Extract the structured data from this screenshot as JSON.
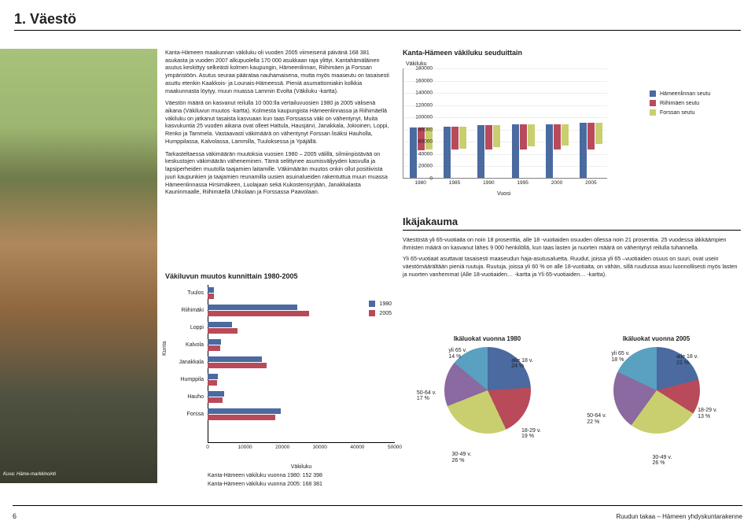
{
  "page": {
    "section_title": "1. Väestö",
    "page_number": "6",
    "footer_text": "Ruudun takaa – Hämeen yhdyskuntarakenne",
    "photo_credit": "Kuva: Häme-markkinointi"
  },
  "main_text": {
    "p1": "Kanta-Hämeen maakunnan väkiluku oli vuoden 2005 viimeisenä päivänä 168 381 asukasta ja vuoden 2007 alkupuolella 170 000 asukkaan raja ylittyi. Kantahämäläinen asutus keskittyy selkeästi kolmen kaupungin, Hämeenlinnan, Riihimäen ja Forssan ympäristöön. Asutus seuraa pääratаa nauhamaisena, mutta myös maaseutu on tasaisesti asuttu etenkin Kaakkois- ja Lounais-Hämeessä. Pieniä asumattomiakin kolkkia maakunnasta löytyy, muun muassa Lammin Evolta (Väkiluku -kartta).",
    "p2": "Väestön määrä on kasvanut reilulla 10 000:lla vertailuvuosien 1980 ja 2005 välisenä aikana (Väkiluvun muutos -kartta). Kolmesta kaupungista Hämeenlinnassa ja Riihimäellä väkiluku on jatkanut tasaista kasvuaan kun taas Forssassa väki on vähentynyt. Muita kasvukuntia 25 vuoden aikana ovat olleet Hattula, Hausjärvi, Janakkala, Jokioinen, Loppi, Renko ja Tammela. Vastaavasti väkimäärä on vähentynyt Forssan lisäksi Hauholla, Humppilassa, Kalvolassa, Lammilla, Tuuloksessa ja Ypäjällä.",
    "p3": "Tarkasteltaessa väkimäärän muutoksia vuosien 1980 – 2005 välillä, silmiinpistävää on keskustojen väkimäärän väheneminen. Tämä selittynee asumisväljyyden kasvulla ja lapsiperheiden muutolla taajamien laitamille. Väkimäärän muutos onkin ollut positiivista juuri kaupunkien ja taajamien reunamilla uusien asuinalueiden rakentuttua muun muassa Hämeenlinnassa Hirsimäkeen, Luolajaan sekä Kukostensyrjään, Janakkalasta Kauriinmaalle, Riihimäellä Uhkolaan ja Forssassa Paavolaan."
  },
  "chart1": {
    "title": "Kanta-Hämeen väkiluku seuduittain",
    "ylabel": "Väkiluku",
    "xlabel": "Vuosi",
    "ylim": [
      0,
      180000
    ],
    "ytick_step": 20000,
    "yticks": [
      "0",
      "20000",
      "40000",
      "60000",
      "80000",
      "100000",
      "120000",
      "140000",
      "160000",
      "180000"
    ],
    "xticks": [
      "1980",
      "1985",
      "1990",
      "1995",
      "2000",
      "2005"
    ],
    "series": [
      {
        "name": "Hämeenlinnan seutu",
        "color": "#4a6aa0",
        "values": [
          82000,
          84000,
          86000,
          87000,
          88000,
          90000
        ]
      },
      {
        "name": "Riihimäen seutu",
        "color": "#b84a5a",
        "values": [
          37000,
          38000,
          40000,
          41000,
          42000,
          44000
        ]
      },
      {
        "name": "Forssan seutu",
        "color": "#c9cf6e",
        "values": [
          36000,
          36000,
          36000,
          36000,
          35500,
          35000
        ]
      }
    ],
    "background_color": "#ffffff",
    "grid_color": "#eeeeee"
  },
  "ika": {
    "title": "Ikäjakauma",
    "p1": "Väestöstä yli 65-vuotiaita on noin 18 prosenttia, alle 18 -vuotiaiden osuuden ollessa noin 21 prosenttia. 25 vuodessa iäkkäämpien ihmisten määrä on kasvanut lähes 9 000 henkilöllä, kun taas lasten ja nuorten määrä on vähentynyt reilulla tuhannella.",
    "p2": "Yli 65-vuotiaat asuttavat tasaisesti maaseudun haja-asutusaluetta. Ruudut, joissa yli 65 –vuotiaiden osuus on suuri, ovat usein väestömäärältään pieniä ruutuja. Ruutuja, joissa yli 60 % on alle 18-vuotiaita, on vähän, sillä ruudussa asuu luonnollisesti myös lasten ja nuorten vanhemmat (Alle 18-vuotiaiden… -kartta ja Yli 65-vuotiaiden… -kartta)."
  },
  "chart2": {
    "title": "Väkiluvun muutos kunnittain 1980-2005",
    "ylabel": "Kunta",
    "xlabel": "Väkiluku",
    "xlim": [
      0,
      50000
    ],
    "xtick_step": 10000,
    "xticks": [
      "0",
      "10000",
      "20000",
      "30000",
      "40000",
      "50000"
    ],
    "categories": [
      "Tuulos",
      "Riihimäki",
      "Loppi",
      "Kalvola",
      "Janakkala",
      "Humppila",
      "Hauho",
      "Forssa"
    ],
    "series": [
      {
        "name": "1980",
        "color": "#4a6aa0",
        "values": [
          1700,
          24000,
          6500,
          3600,
          14500,
          2800,
          4400,
          19500
        ]
      },
      {
        "name": "2005",
        "color": "#b84a5a",
        "values": [
          1650,
          27000,
          8000,
          3450,
          15800,
          2550,
          3950,
          18000
        ]
      }
    ],
    "notes": [
      "Kanta-Hämeen väkiluku vuonna 1980: 152 398",
      "Kanta-Hämeen väkiluku vuonna 2005: 168 381"
    ]
  },
  "pies": {
    "p1980": {
      "title": "Ikäluokat vuonna 1980",
      "slices": [
        {
          "label": "alle 18 v.",
          "pct": 24,
          "color": "#4a6aa0"
        },
        {
          "label": "18-29 v.",
          "pct": 19,
          "color": "#b84a5a"
        },
        {
          "label": "30-49 v.",
          "pct": 26,
          "color": "#c9cf6e"
        },
        {
          "label": "50-64 v.",
          "pct": 17,
          "color": "#8a6aa0"
        },
        {
          "label": "yli 65 v.",
          "pct": 14,
          "color": "#5aa0c0"
        }
      ]
    },
    "p2005": {
      "title": "Ikäluokat vuonna 2005",
      "slices": [
        {
          "label": "alle 18 v.",
          "pct": 21,
          "color": "#4a6aa0"
        },
        {
          "label": "18-29 v.",
          "pct": 13,
          "color": "#b84a5a"
        },
        {
          "label": "30-49 v.",
          "pct": 26,
          "color": "#c9cf6e"
        },
        {
          "label": "50-64 v.",
          "pct": 22,
          "color": "#8a6aa0"
        },
        {
          "label": "yli 65 v.",
          "pct": 18,
          "color": "#5aa0c0"
        }
      ]
    }
  }
}
